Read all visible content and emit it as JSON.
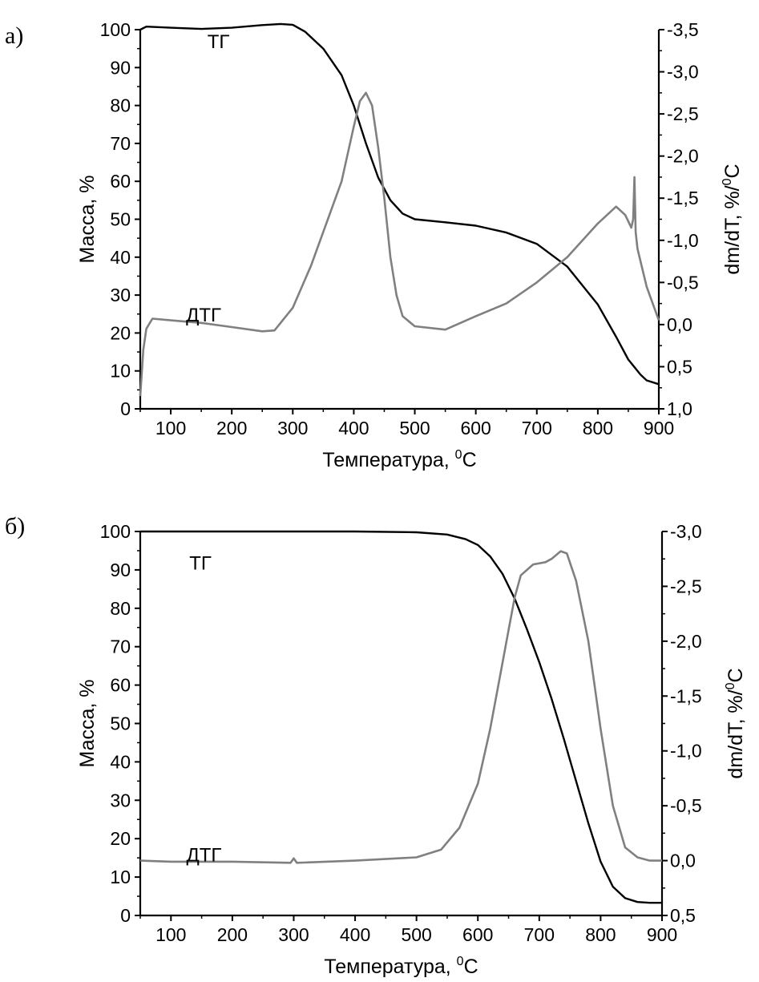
{
  "figure": {
    "panel_a_label": "а)",
    "panel_b_label": "б)"
  },
  "chart_data": [
    {
      "type": "line",
      "panel": "а)",
      "xlabel": "Температура, ",
      "xlabel_sup": "0",
      "xlabel_tail": "C",
      "ylabel": "Масса, %",
      "y2label": "dm/dT, %/",
      "y2label_sup": "0",
      "y2label_tail": "C",
      "xlim": [
        50,
        900
      ],
      "ylim": [
        0,
        100
      ],
      "y2lim": [
        1.0,
        -3.5
      ],
      "x_ticks": [
        "100",
        "200",
        "300",
        "400",
        "500",
        "600",
        "700",
        "800",
        "900"
      ],
      "y_ticks": [
        "0",
        "10",
        "20",
        "30",
        "40",
        "50",
        "60",
        "70",
        "80",
        "90",
        "100"
      ],
      "y2_ticks": [
        "1,0",
        "0,5",
        "0,0",
        "-0,5",
        "-1,0",
        "-1,5",
        "-2,0",
        "-2,5",
        "-3,0",
        "-3,5"
      ],
      "annotations": [
        {
          "text": "ТГ",
          "x": 160,
          "y": 97
        },
        {
          "text": "ДТГ",
          "x": 125,
          "y": 25
        }
      ],
      "series": [
        {
          "name": "ТГ",
          "axis": "left",
          "color": "#000000",
          "x": [
            50,
            60,
            100,
            150,
            200,
            250,
            280,
            300,
            320,
            350,
            380,
            400,
            420,
            440,
            460,
            480,
            500,
            550,
            600,
            650,
            700,
            750,
            800,
            830,
            850,
            870,
            880,
            900
          ],
          "y": [
            100,
            100.8,
            100.5,
            100.2,
            100.5,
            101.2,
            101.5,
            101.3,
            99.5,
            95,
            88,
            80,
            70,
            61,
            55,
            51.5,
            50,
            49.2,
            48.3,
            46.5,
            43.5,
            37.5,
            27.5,
            19,
            13,
            9,
            7.5,
            6.5
          ]
        },
        {
          "name": "ДТГ",
          "axis": "right",
          "color": "#808080",
          "x": [
            50,
            55,
            60,
            70,
            100,
            150,
            200,
            250,
            270,
            300,
            330,
            360,
            380,
            400,
            410,
            420,
            430,
            440,
            450,
            460,
            470,
            480,
            500,
            550,
            600,
            650,
            700,
            750,
            800,
            830,
            845,
            855,
            858,
            860,
            862,
            865,
            880,
            900
          ],
          "y": [
            0.85,
            0.3,
            0.05,
            -0.07,
            -0.05,
            -0.02,
            0.03,
            0.08,
            0.07,
            -0.2,
            -0.7,
            -1.3,
            -1.7,
            -2.35,
            -2.65,
            -2.75,
            -2.6,
            -2.1,
            -1.5,
            -0.8,
            -0.35,
            -0.1,
            0.02,
            0.06,
            -0.1,
            -0.25,
            -0.5,
            -0.8,
            -1.2,
            -1.4,
            -1.3,
            -1.15,
            -1.25,
            -1.75,
            -1.1,
            -0.9,
            -0.45,
            -0.05
          ]
        }
      ]
    },
    {
      "type": "line",
      "panel": "б)",
      "xlabel": "Температура, ",
      "xlabel_sup": "0",
      "xlabel_tail": "C",
      "ylabel": "Масса, %",
      "y2label": "dm/dT, %/",
      "y2label_sup": "0",
      "y2label_tail": "C",
      "xlim": [
        50,
        900
      ],
      "ylim": [
        0,
        100
      ],
      "y2lim": [
        0.5,
        -3.0
      ],
      "x_ticks": [
        "100",
        "200",
        "300",
        "400",
        "500",
        "600",
        "700",
        "800",
        "900"
      ],
      "y_ticks": [
        "0",
        "10",
        "20",
        "30",
        "40",
        "50",
        "60",
        "70",
        "80",
        "90",
        "100"
      ],
      "y2_ticks": [
        "0,5",
        "0,0",
        "-0,5",
        "-1,0",
        "-1,5",
        "-2,0",
        "-2,5",
        "-3,0"
      ],
      "annotations": [
        {
          "text": "ТГ",
          "x": 130,
          "y": 92
        },
        {
          "text": "ДТГ",
          "x": 125,
          "y": 16
        }
      ],
      "series": [
        {
          "name": "ТГ",
          "axis": "left",
          "color": "#000000",
          "x": [
            50,
            200,
            300,
            400,
            500,
            550,
            580,
            600,
            620,
            640,
            660,
            680,
            700,
            720,
            740,
            760,
            780,
            800,
            820,
            840,
            860,
            880,
            900
          ],
          "y": [
            100,
            100,
            100,
            100,
            99.8,
            99.2,
            98,
            96.5,
            93.5,
            89,
            82.5,
            74.5,
            66,
            56.5,
            46,
            35,
            24,
            14,
            7.5,
            4.5,
            3.5,
            3.3,
            3.3
          ]
        },
        {
          "name": "ДТГ",
          "axis": "right",
          "color": "#808080",
          "x": [
            50,
            100,
            200,
            295,
            300,
            305,
            400,
            500,
            540,
            570,
            600,
            620,
            640,
            650,
            660,
            670,
            690,
            710,
            720,
            735,
            745,
            760,
            780,
            790,
            800,
            820,
            840,
            860,
            880,
            900
          ],
          "y": [
            0.0,
            0.01,
            0.01,
            0.02,
            -0.02,
            0.02,
            0.0,
            -0.03,
            -0.1,
            -0.3,
            -0.7,
            -1.2,
            -1.8,
            -2.1,
            -2.4,
            -2.6,
            -2.7,
            -2.72,
            -2.75,
            -2.82,
            -2.8,
            -2.55,
            -2.0,
            -1.6,
            -1.2,
            -0.5,
            -0.12,
            -0.03,
            0.0,
            0.0
          ]
        }
      ]
    }
  ]
}
